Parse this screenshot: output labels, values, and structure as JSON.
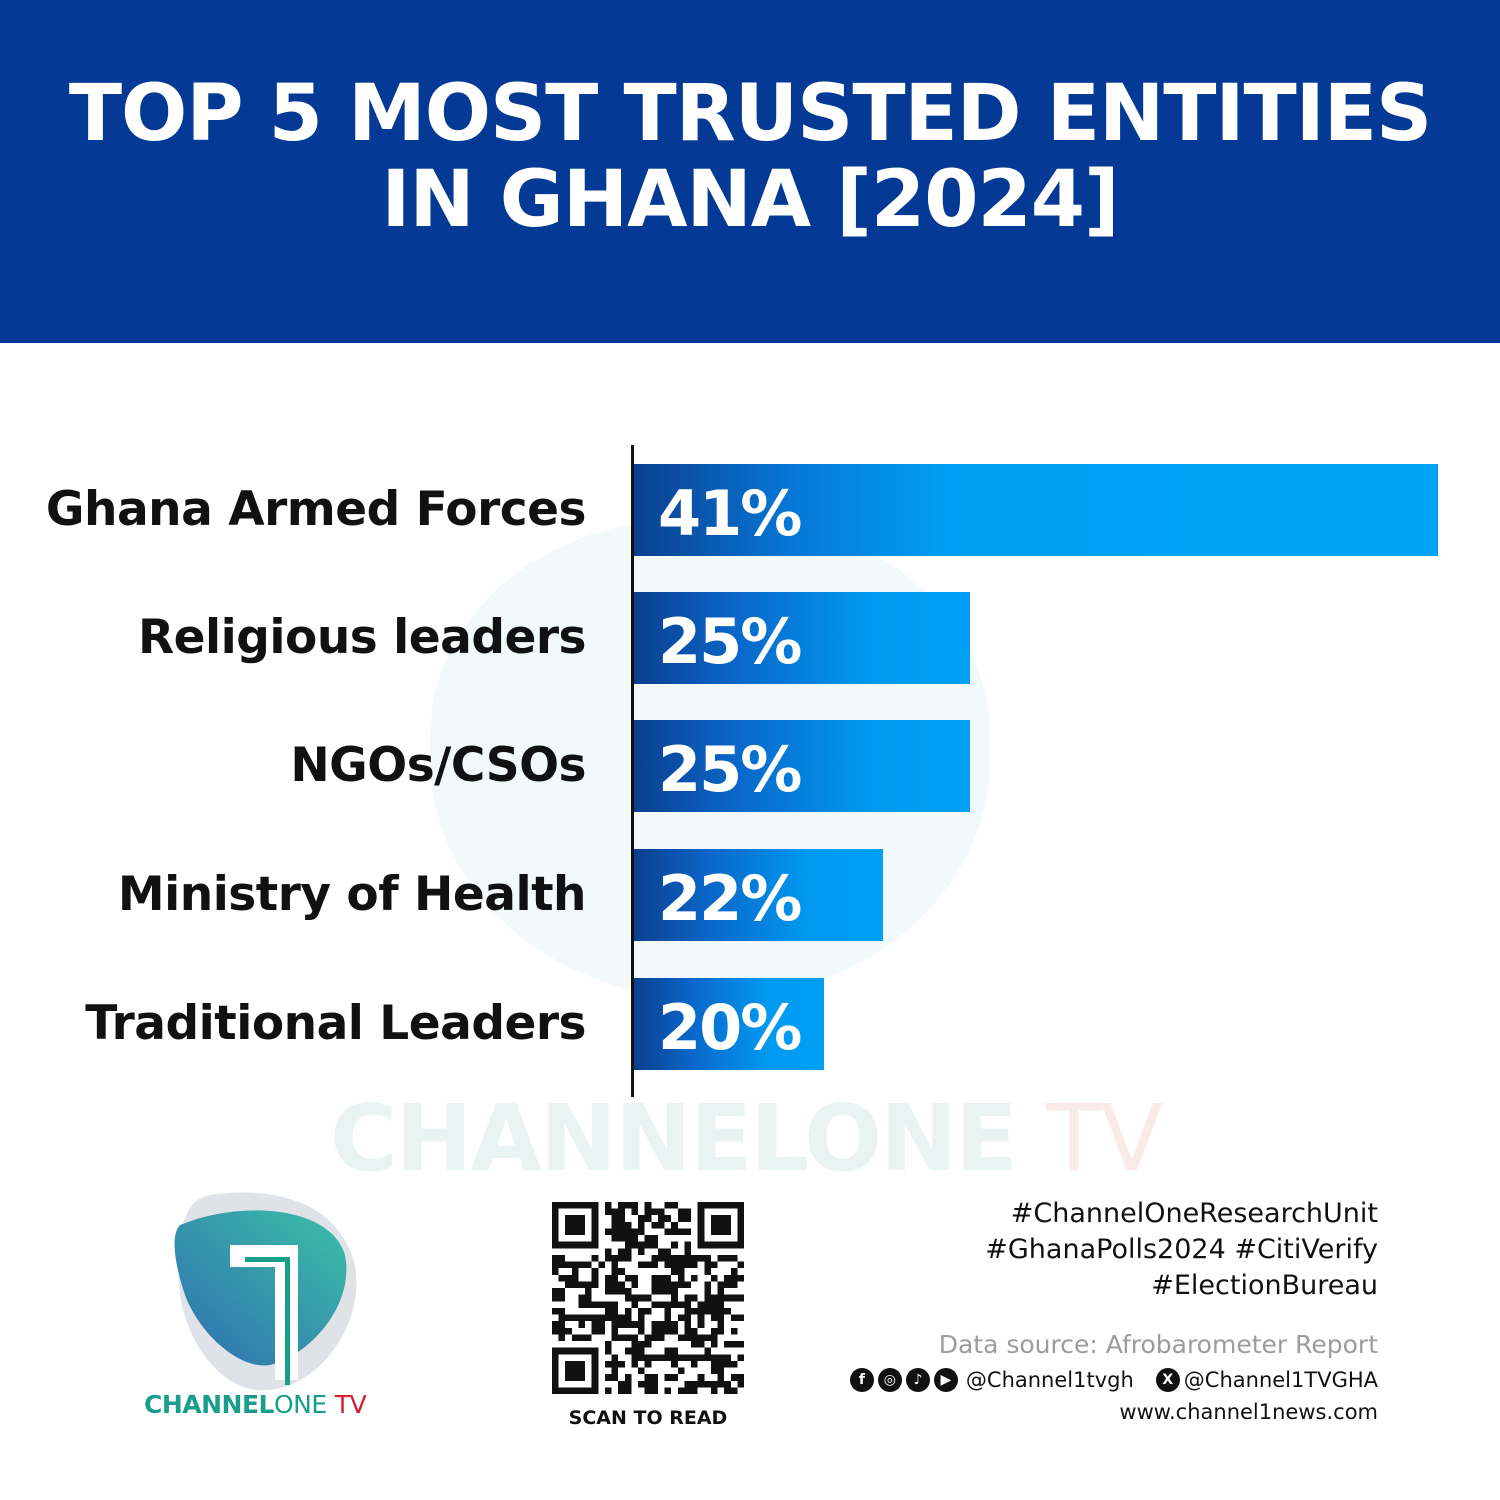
{
  "header": {
    "title_line1": "TOP 5 MOST TRUSTED ENTITIES",
    "title_line2": "IN GHANA [2024]"
  },
  "chart_data": {
    "type": "bar",
    "orientation": "horizontal",
    "title": "TOP 5 MOST TRUSTED ENTITIES IN GHANA [2024]",
    "categories": [
      "Ghana Armed Forces",
      "Religious leaders",
      "NGOs/CSOs",
      "Ministry of Health",
      "Traditional Leaders"
    ],
    "values": [
      41,
      25,
      25,
      22,
      20
    ],
    "value_labels": [
      "41%",
      "25%",
      "25%",
      "22%",
      "20%"
    ],
    "unit": "%",
    "grid": false,
    "bar_color": "#00a0f5"
  },
  "watermark": {
    "part1": "CHANNEL",
    "part2": "ONE",
    "part3": "TV"
  },
  "logo": {
    "part1": "CHANNEL",
    "part2": "ONE",
    "part3": "TV",
    "teal": "#1a9e8c",
    "red": "#d1202f"
  },
  "qr": {
    "caption": "SCAN TO READ"
  },
  "footer": {
    "hashtags": [
      "#ChannelOneResearchUnit",
      "#GhanaPolls2024 #CitiVerify",
      "#ElectionBureau"
    ],
    "source": "Data source: Afrobarometer Report",
    "social_handle": "@Channel1tvgh",
    "x_handle": "@Channel1TVGHA",
    "website": "www.channel1news.com",
    "social_icons": [
      "facebook-icon",
      "instagram-icon",
      "tiktok-icon",
      "youtube-icon",
      "x-icon"
    ]
  },
  "colors": {
    "header_bg": "#043a95"
  }
}
